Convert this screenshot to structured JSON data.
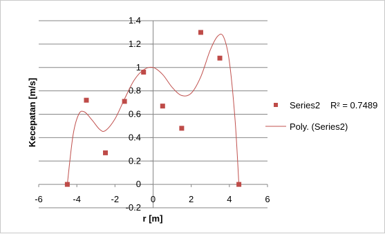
{
  "chart_data": {
    "type": "scatter",
    "title": "",
    "xlabel": "r [m]",
    "ylabel": "Kecepatan [m/s]",
    "xlim": [
      -6,
      6
    ],
    "ylim": [
      -0.2,
      1.4
    ],
    "x_ticks": [
      "-6",
      "-4",
      "-2",
      "0",
      "2",
      "4",
      "6"
    ],
    "y_ticks": [
      "-0.2",
      "0",
      "0.2",
      "0.4",
      "0.6",
      "0.8",
      "1",
      "1.2",
      "1.4"
    ],
    "grid": "horizontal",
    "legend_position": "right",
    "series": [
      {
        "name": "Series2",
        "kind": "markers",
        "color": "#be4b48",
        "x": [
          -4.5,
          -3.5,
          -2.5,
          -1.5,
          -0.5,
          0.5,
          1.5,
          2.5,
          3.5,
          4.5
        ],
        "y": [
          0.0,
          0.72,
          0.27,
          0.71,
          0.96,
          0.67,
          0.48,
          1.3,
          1.08,
          0.0
        ]
      },
      {
        "name": "Poly. (Series2)",
        "kind": "trendline",
        "color": "#c0504d",
        "x": [
          -4.5,
          -4.2,
          -3.9,
          -3.6,
          -3.2,
          -2.8,
          -2.5,
          -2.0,
          -1.5,
          -1.0,
          -0.5,
          0.0,
          0.5,
          1.0,
          1.5,
          2.0,
          2.5,
          3.0,
          3.4,
          3.7,
          4.0,
          4.3,
          4.5
        ],
        "y": [
          0.0,
          0.42,
          0.6,
          0.62,
          0.55,
          0.47,
          0.46,
          0.56,
          0.73,
          0.89,
          0.98,
          1.0,
          0.94,
          0.83,
          0.76,
          0.78,
          0.92,
          1.15,
          1.27,
          1.26,
          1.05,
          0.55,
          0.0
        ]
      }
    ],
    "r_squared": "R² = 0.7489"
  }
}
